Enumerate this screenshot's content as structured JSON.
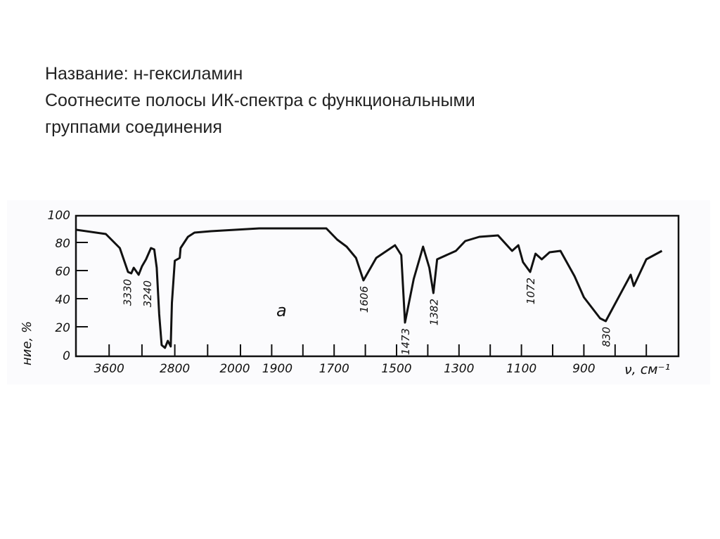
{
  "slide": {
    "title_line": "Название: н-гексиламин",
    "task_line1": "Соотнесите полосы ИК-спектра с функциональными",
    "task_line2": "группами соединения"
  },
  "chart_data": {
    "type": "line",
    "title": "",
    "xlabel": "ν, см⁻¹",
    "ylabel": "ние, %",
    "panel_label": "a",
    "x_reversed": true,
    "xlim": [
      4000,
      600
    ],
    "ylim": [
      0,
      100
    ],
    "x_ticks": [
      3600,
      3200,
      2800,
      2400,
      2000,
      1900,
      1800,
      1700,
      1600,
      1500,
      1400,
      1300,
      1200,
      1100,
      1000,
      900,
      800,
      700
    ],
    "x_tick_labels": [
      "3600",
      "2800",
      "2000",
      "1900",
      "1700",
      "1500",
      "1300",
      "1100",
      "900"
    ],
    "x_tick_labeled_values": [
      3600,
      2800,
      2000,
      1900,
      1700,
      1500,
      1300,
      1100,
      900
    ],
    "y_ticks": [
      0,
      20,
      40,
      60,
      80,
      100
    ],
    "y_tick_labels": [
      "0",
      "20",
      "40",
      "60",
      "80",
      "100"
    ],
    "grid": false,
    "line_color": "#111111",
    "series": [
      {
        "x": [
          4000,
          3640,
          3470,
          3370,
          3330,
          3300,
          3240,
          3200,
          3150,
          3090,
          3050,
          3020,
          2990,
          2960,
          2920,
          2885,
          2850,
          2835,
          2800,
          2740,
          2730,
          2640,
          2560,
          2360,
          1940,
          1725,
          1690,
          1660,
          1630,
          1606,
          1565,
          1505,
          1485,
          1473,
          1445,
          1415,
          1395,
          1382,
          1370,
          1310,
          1280,
          1235,
          1175,
          1130,
          1110,
          1095,
          1072,
          1055,
          1035,
          1010,
          975,
          930,
          900,
          848,
          830,
          750,
          740,
          700,
          650
        ],
        "y": [
          89,
          86,
          76,
          59,
          58,
          62,
          57,
          63,
          68,
          76,
          75,
          62,
          29,
          7,
          5,
          10,
          6,
          37,
          67,
          69,
          76,
          84,
          87,
          88,
          90,
          90,
          82,
          77,
          69,
          53,
          69,
          78,
          71,
          23,
          54,
          77,
          62,
          44,
          68,
          74,
          81,
          84,
          85,
          74,
          78,
          66,
          59,
          72,
          68,
          73,
          74,
          56,
          41,
          26,
          24,
          57,
          49,
          68,
          74
        ]
      }
    ],
    "peak_labels": [
      {
        "x": 3330,
        "label": "3330"
      },
      {
        "x": 3240,
        "label": "3240"
      },
      {
        "x": 1606,
        "label": "1606"
      },
      {
        "x": 1473,
        "label": "1473"
      },
      {
        "x": 1382,
        "label": "1382"
      },
      {
        "x": 1072,
        "label": "1072"
      },
      {
        "x": 830,
        "label": "830"
      }
    ]
  }
}
